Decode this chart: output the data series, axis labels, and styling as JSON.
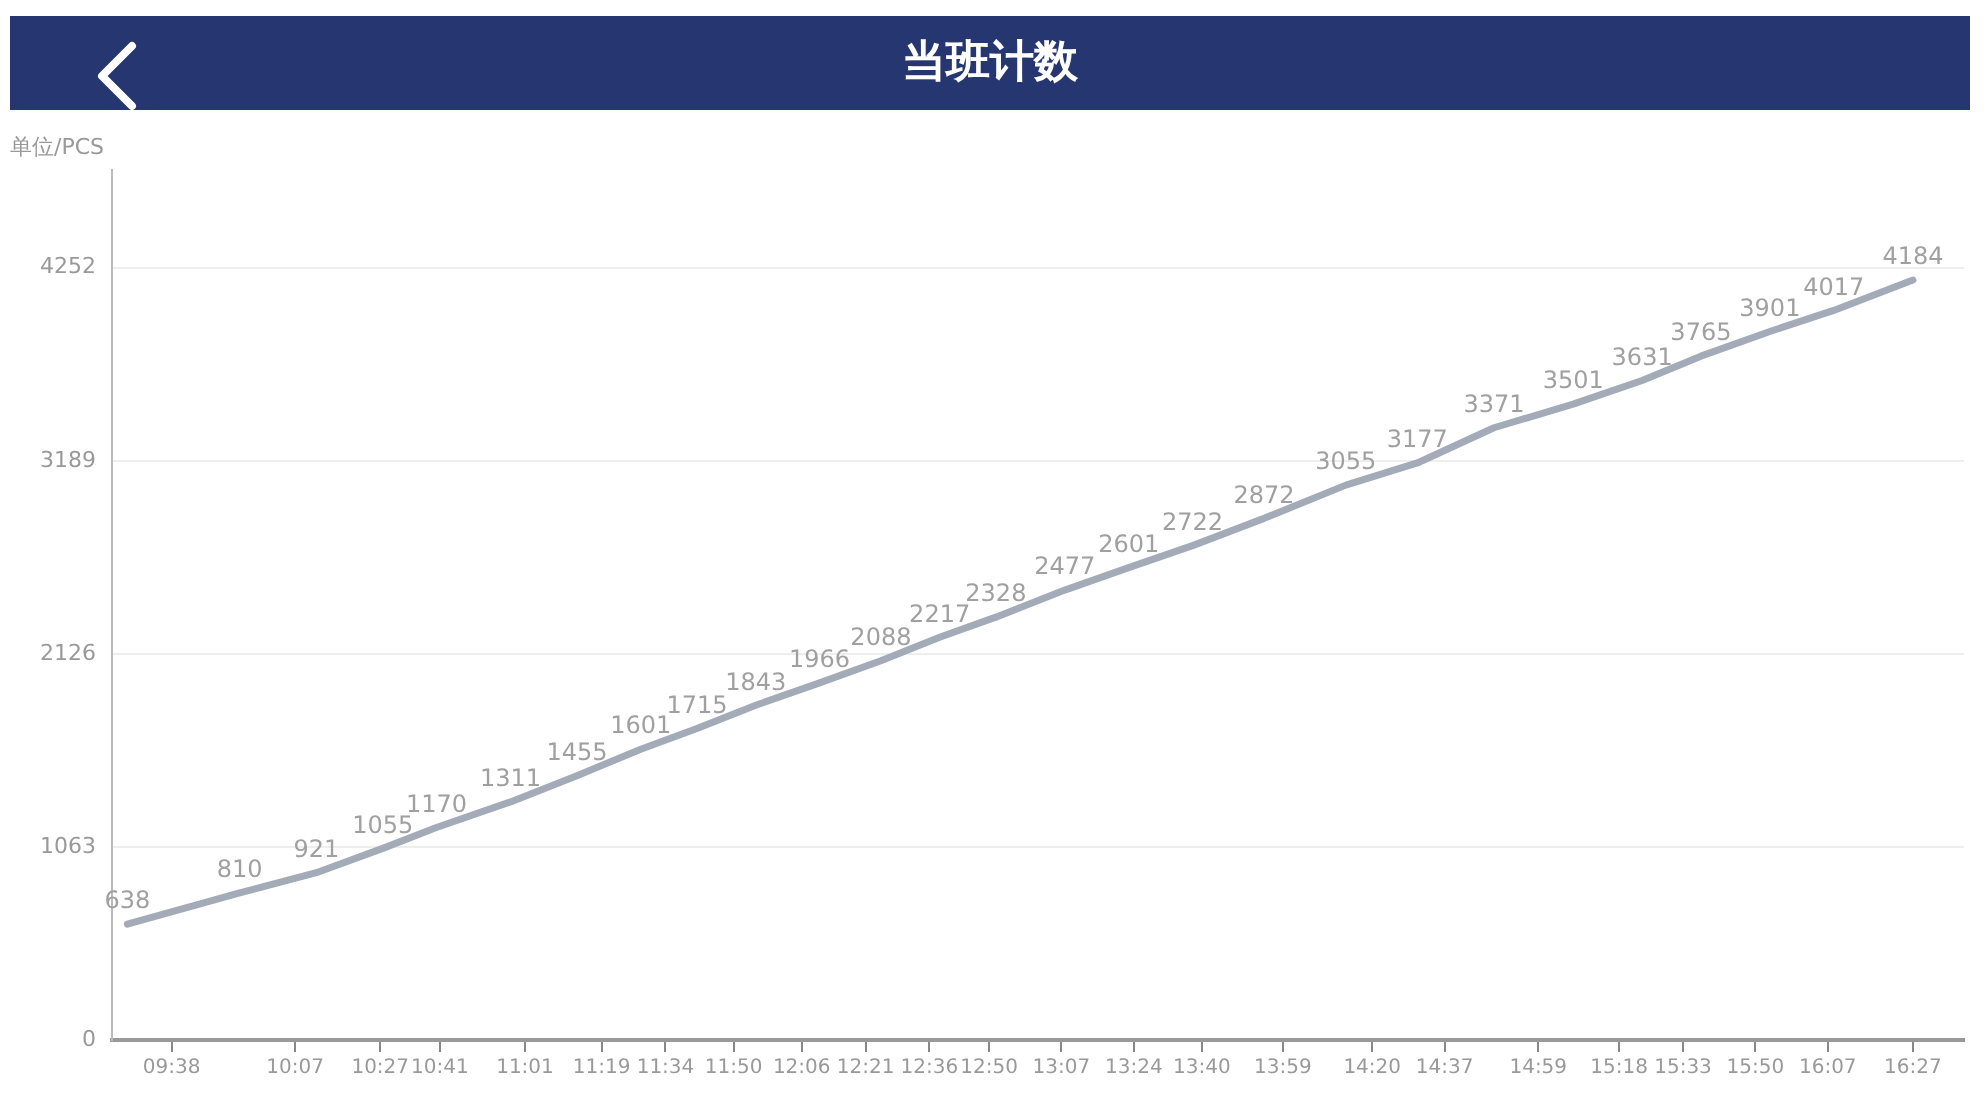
{
  "chart_data": {
    "type": "line",
    "title": "当班计数",
    "ylabel": "单位/PCS",
    "x": [
      9.46,
      9.9,
      10.2,
      10.46,
      10.67,
      10.96,
      11.22,
      11.47,
      11.69,
      11.92,
      12.17,
      12.41,
      12.64,
      12.86,
      13.13,
      13.38,
      13.63,
      13.91,
      14.23,
      14.51,
      14.81,
      15.12,
      15.39,
      15.62,
      15.89,
      16.14,
      16.45
    ],
    "values": [
      638,
      810,
      921,
      1055,
      1170,
      1311,
      1455,
      1601,
      1715,
      1843,
      1966,
      2088,
      2217,
      2328,
      2477,
      2601,
      2722,
      2872,
      3055,
      3177,
      3371,
      3501,
      3631,
      3765,
      3901,
      4017,
      4184
    ],
    "color": "#a3abb8",
    "xlim": [
      9.4,
      16.65
    ],
    "xticks": [
      {
        "value": 9.6333,
        "label": "09:38"
      },
      {
        "value": 10.1167,
        "label": "10:07"
      },
      {
        "value": 10.45,
        "label": "10:27"
      },
      {
        "value": 10.6833,
        "label": "10:41"
      },
      {
        "value": 11.0167,
        "label": "11:01"
      },
      {
        "value": 11.3167,
        "label": "11:19"
      },
      {
        "value": 11.5667,
        "label": "11:34"
      },
      {
        "value": 11.8333,
        "label": "11:50"
      },
      {
        "value": 12.1,
        "label": "12:06"
      },
      {
        "value": 12.35,
        "label": "12:21"
      },
      {
        "value": 12.6,
        "label": "12:36"
      },
      {
        "value": 12.8333,
        "label": "12:50"
      },
      {
        "value": 13.1167,
        "label": "13:07"
      },
      {
        "value": 13.4,
        "label": "13:24"
      },
      {
        "value": 13.6667,
        "label": "13:40"
      },
      {
        "value": 13.9833,
        "label": "13:59"
      },
      {
        "value": 14.3333,
        "label": "14:20"
      },
      {
        "value": 14.6167,
        "label": "14:37"
      },
      {
        "value": 14.9833,
        "label": "14:59"
      },
      {
        "value": 15.3,
        "label": "15:18"
      },
      {
        "value": 15.55,
        "label": "15:33"
      },
      {
        "value": 15.8333,
        "label": "15:50"
      },
      {
        "value": 16.1167,
        "label": "16:07"
      },
      {
        "value": 16.45,
        "label": "16:27"
      }
    ],
    "ylim": [
      0,
      4790
    ],
    "yticks": [
      0,
      1063,
      2126,
      3189,
      4252
    ],
    "grid": "y",
    "legend": false,
    "marker": "none",
    "line_style": "solid",
    "data_labels": true
  }
}
